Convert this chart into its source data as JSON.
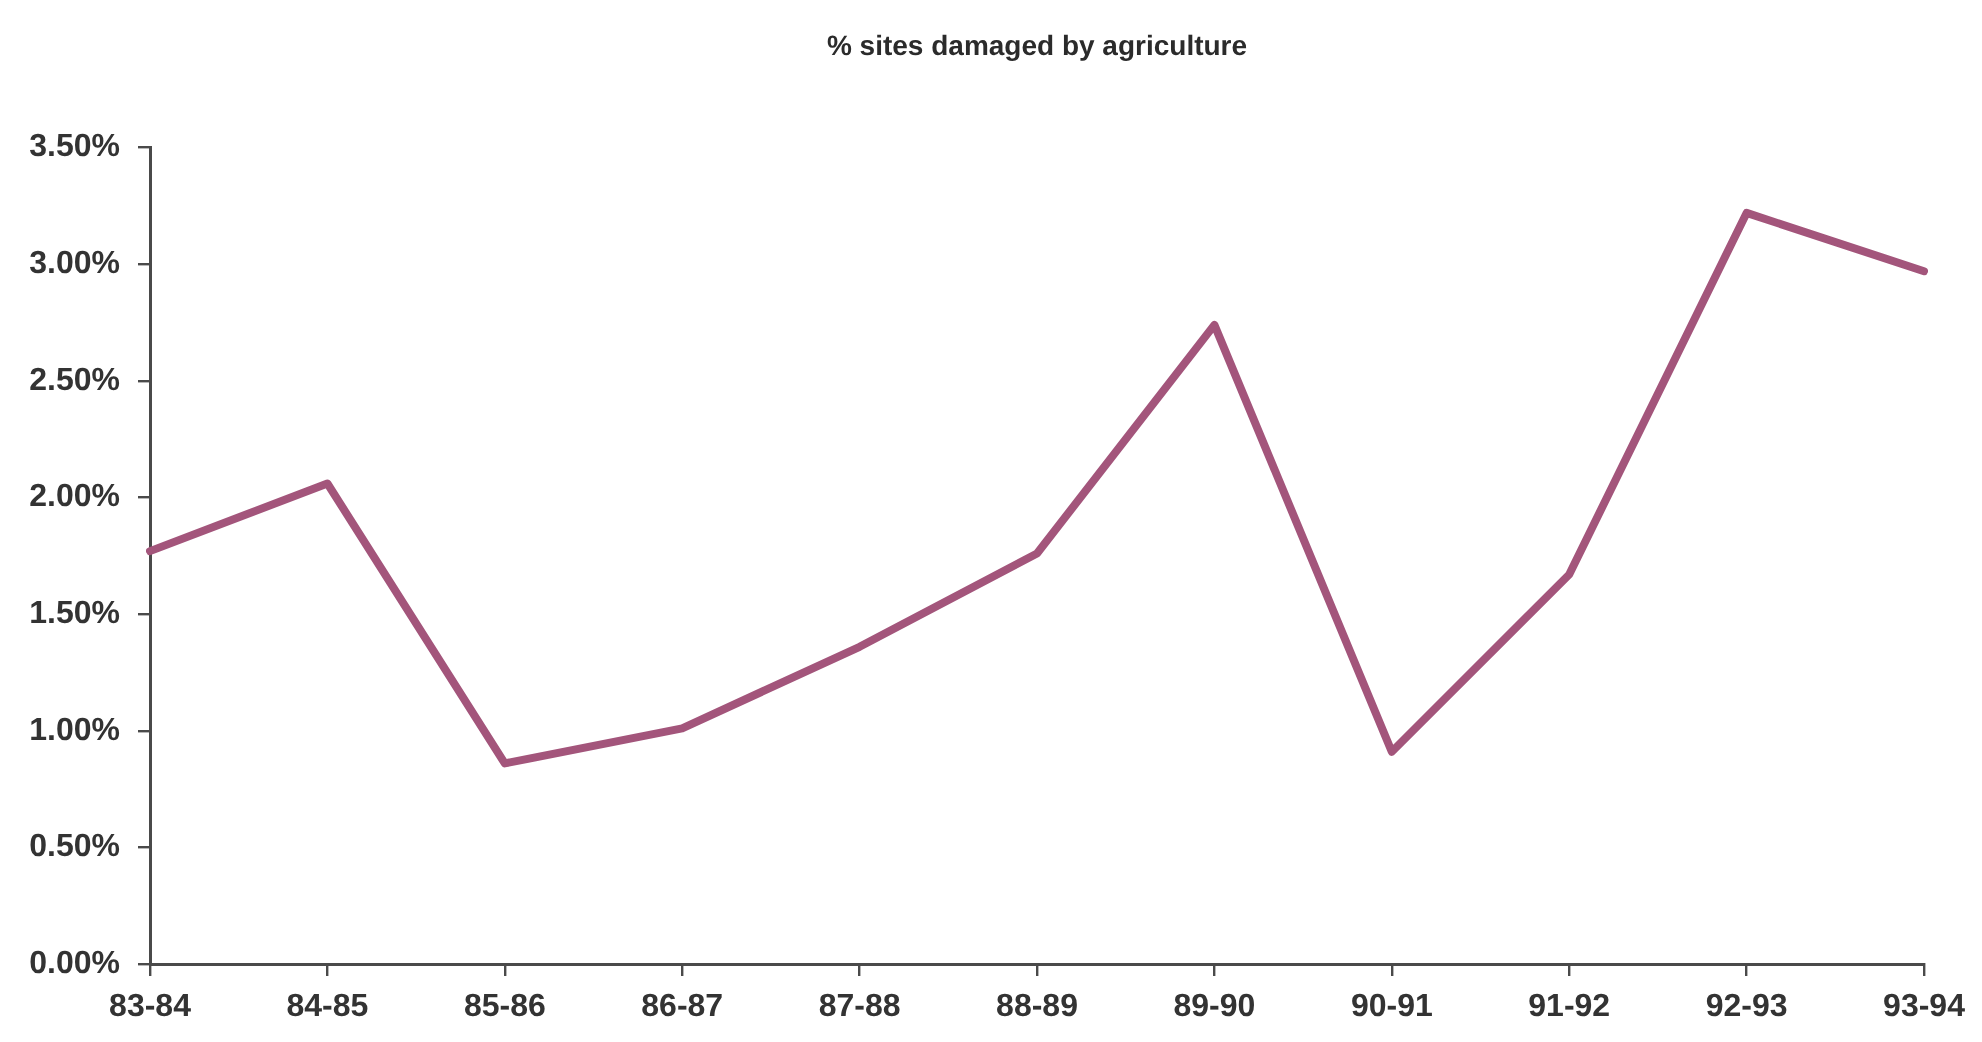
{
  "chart_data": {
    "type": "line",
    "title": "% sites damaged by agriculture",
    "categories": [
      "83-84",
      "84-85",
      "85-86",
      "86-87",
      "87-88",
      "88-89",
      "89-90",
      "90-91",
      "91-92",
      "92-93",
      "93-94"
    ],
    "series": [
      {
        "color": "#a3557b",
        "values": [
          1.77,
          2.06,
          0.86,
          1.01,
          1.36,
          1.76,
          2.74,
          0.91,
          1.67,
          3.22,
          2.97
        ]
      }
    ],
    "ylim": [
      0,
      3.5
    ],
    "yticks": [
      {
        "value": 0,
        "label": "0.00%"
      },
      {
        "value": 0.5,
        "label": "0.50%"
      },
      {
        "value": 1,
        "label": "1.00%"
      },
      {
        "value": 1.5,
        "label": "1.50%"
      },
      {
        "value": 2,
        "label": "2.00%"
      },
      {
        "value": 2.5,
        "label": "2.50%"
      },
      {
        "value": 3,
        "label": "3.00%"
      },
      {
        "value": 3.5,
        "label": "3.50%"
      }
    ],
    "marker": "none",
    "line_style": "solid"
  }
}
